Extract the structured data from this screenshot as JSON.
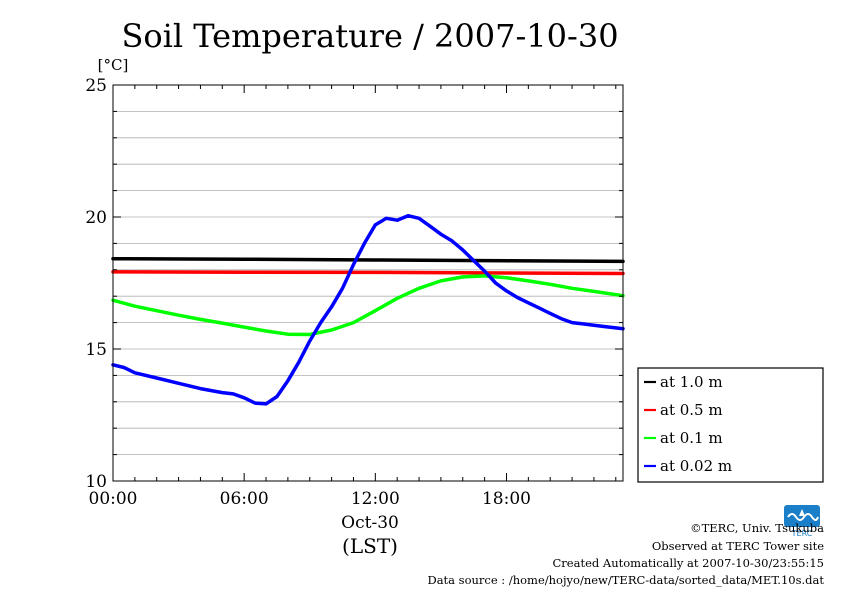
{
  "chart_data": {
    "type": "line",
    "title": "Soil Temperature / 2007-10-30",
    "ylabel": "[°C]",
    "xlabel": "(LST)",
    "date_label": "Oct-30",
    "x_ticks": [
      "00:00",
      "06:00",
      "12:00",
      "18:00"
    ],
    "x_tick_hours": [
      0,
      6,
      12,
      18
    ],
    "y_ticks": [
      "10",
      "15",
      "20",
      "25"
    ],
    "y_tick_values": [
      10,
      15,
      20,
      25
    ],
    "xlim": [
      0,
      23.33
    ],
    "ylim": [
      10,
      25
    ],
    "grid": true,
    "legend_position": "right",
    "series": [
      {
        "name": "at 1.0 m",
        "color": "#000000",
        "x": [
          0,
          6,
          12,
          18,
          23.33
        ],
        "y": [
          18.42,
          18.4,
          18.37,
          18.34,
          18.32
        ]
      },
      {
        "name": "at 0.5 m",
        "color": "#ff0000",
        "x": [
          0,
          6,
          12,
          18,
          23.33
        ],
        "y": [
          17.92,
          17.91,
          17.9,
          17.88,
          17.86
        ]
      },
      {
        "name": "at 0.1 m",
        "color": "#00ff00",
        "x": [
          0,
          1,
          2,
          3,
          4,
          5,
          6,
          7,
          8,
          9,
          10,
          11,
          12,
          13,
          14,
          15,
          16,
          17,
          18,
          19,
          20,
          21,
          22,
          23.33
        ],
        "y": [
          16.85,
          16.62,
          16.45,
          16.28,
          16.12,
          15.98,
          15.83,
          15.68,
          15.56,
          15.55,
          15.72,
          16.0,
          16.45,
          16.92,
          17.3,
          17.58,
          17.73,
          17.77,
          17.7,
          17.58,
          17.45,
          17.3,
          17.18,
          17.02
        ]
      },
      {
        "name": "at 0.02 m",
        "color": "#0000ff",
        "x": [
          0,
          0.5,
          1,
          2,
          3,
          4,
          5,
          5.5,
          6,
          6.5,
          7,
          7.5,
          8,
          8.5,
          9,
          9.5,
          10,
          10.5,
          11,
          11.5,
          12,
          12.5,
          13,
          13.5,
          14,
          14.5,
          15,
          15.5,
          16,
          16.5,
          17,
          17.5,
          18,
          18.5,
          19,
          19.5,
          20,
          20.5,
          21,
          21.5,
          22,
          22.5,
          23,
          23.33
        ],
        "y": [
          14.4,
          14.3,
          14.1,
          13.9,
          13.7,
          13.5,
          13.35,
          13.3,
          13.15,
          12.95,
          12.92,
          13.2,
          13.8,
          14.5,
          15.3,
          16.0,
          16.6,
          17.3,
          18.2,
          19.0,
          19.7,
          19.95,
          19.88,
          20.05,
          19.95,
          19.65,
          19.35,
          19.1,
          18.75,
          18.35,
          17.95,
          17.5,
          17.2,
          16.95,
          16.75,
          16.55,
          16.35,
          16.15,
          16.0,
          15.95,
          15.9,
          15.85,
          15.8,
          15.77
        ]
      }
    ]
  },
  "footer": {
    "copyright": "©TERC, Univ. Tsukuba",
    "observed": "Observed at TERC Tower site",
    "created": "Created Automatically at 2007-10-30/23:55:15",
    "source": "Data source : /home/hojyo/new/TERC-data/sorted_data/MET.10s.dat"
  },
  "logo": {
    "text": "TERC",
    "color": "#1a7fc8"
  }
}
